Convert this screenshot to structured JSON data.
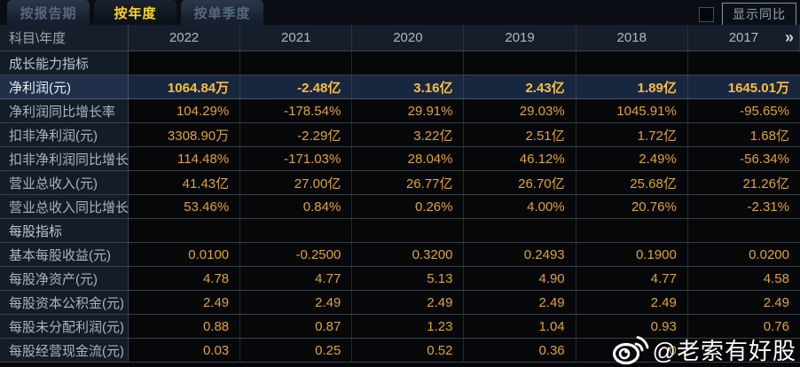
{
  "tabs": [
    {
      "label": "按报告期",
      "active": false
    },
    {
      "label": "按年度",
      "active": true
    },
    {
      "label": "按单季度",
      "active": false
    }
  ],
  "controls": {
    "compare_label": "显示同比",
    "checkbox_checked": false
  },
  "table": {
    "corner_label": "科目\\年度",
    "years": [
      "2022",
      "2021",
      "2020",
      "2019",
      "2018",
      "2017"
    ],
    "more_icon": "»",
    "rows": [
      {
        "type": "section",
        "label": "成长能力指标",
        "values": [
          "",
          "",
          "",
          "",
          "",
          ""
        ]
      },
      {
        "type": "highlight",
        "label": "净利润(元)",
        "values": [
          "1064.84万",
          "-2.48亿",
          "3.16亿",
          "2.43亿",
          "1.89亿",
          "1645.01万"
        ]
      },
      {
        "type": "data",
        "label": "净利润同比增长率",
        "values": [
          "104.29%",
          "-178.54%",
          "29.91%",
          "29.03%",
          "1045.91%",
          "-95.65%"
        ]
      },
      {
        "type": "data",
        "label": "扣非净利润(元)",
        "values": [
          "3308.90万",
          "-2.29亿",
          "3.22亿",
          "2.51亿",
          "1.72亿",
          "1.68亿"
        ]
      },
      {
        "type": "data",
        "label": "扣非净利润同比增长率",
        "values": [
          "114.48%",
          "-171.03%",
          "28.04%",
          "46.12%",
          "2.49%",
          "-56.34%"
        ]
      },
      {
        "type": "data",
        "label": "营业总收入(元)",
        "values": [
          "41.43亿",
          "27.00亿",
          "26.77亿",
          "26.70亿",
          "25.68亿",
          "21.26亿"
        ]
      },
      {
        "type": "data",
        "label": "营业总收入同比增长率",
        "values": [
          "53.46%",
          "0.84%",
          "0.26%",
          "4.00%",
          "20.76%",
          "-2.31%"
        ]
      },
      {
        "type": "section",
        "label": "每股指标",
        "values": [
          "",
          "",
          "",
          "",
          "",
          ""
        ]
      },
      {
        "type": "data",
        "label": "基本每股收益(元)",
        "values": [
          "0.0100",
          "-0.2500",
          "0.3200",
          "0.2493",
          "0.1900",
          "0.0200"
        ]
      },
      {
        "type": "data",
        "label": "每股净资产(元)",
        "values": [
          "4.78",
          "4.77",
          "5.13",
          "4.90",
          "4.77",
          "4.58"
        ]
      },
      {
        "type": "data",
        "label": "每股资本公积金(元)",
        "values": [
          "2.49",
          "2.49",
          "2.49",
          "2.49",
          "2.49",
          "2.49"
        ]
      },
      {
        "type": "data",
        "label": "每股未分配利润(元)",
        "values": [
          "0.88",
          "0.87",
          "1.23",
          "1.04",
          "0.93",
          "0.76"
        ]
      },
      {
        "type": "data",
        "label": "每股经营现金流(元)",
        "values": [
          "0.03",
          "0.25",
          "0.52",
          "0.36",
          "0",
          ""
        ]
      }
    ]
  },
  "watermark": {
    "text": "@老索有好股"
  },
  "colors": {
    "active_tab_text": "#ffd224",
    "value_text": "#e3a239",
    "highlight_value_text": "#ffbe3e",
    "label_column_bg": "#141c27",
    "highlight_row_bg": "#182740",
    "watermark_text": "#ffffff"
  }
}
